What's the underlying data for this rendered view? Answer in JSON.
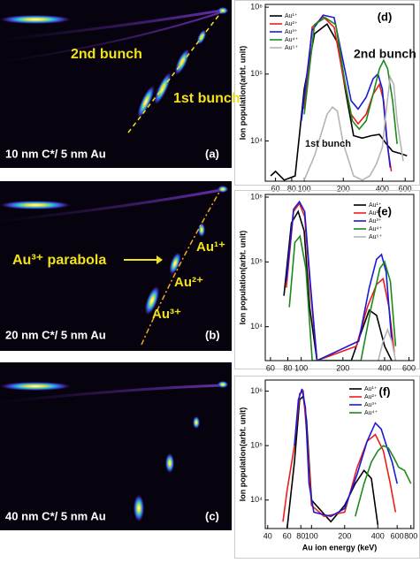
{
  "images": [
    {
      "label": "(a)",
      "caption": "10 nm C*/ 5 nm Au",
      "annotations": [
        "2nd bunch",
        "1st bunch"
      ]
    },
    {
      "label": "(b)",
      "caption": "20 nm C*/ 5 nm Au",
      "annotations": [
        "Au³⁺ parabola",
        "Au¹⁺",
        "Au²⁺",
        "Au³⁺"
      ]
    },
    {
      "label": "(c)",
      "caption": "40 nm C*/ 5 nm Au",
      "annotations": []
    }
  ],
  "chart_data": [
    {
      "type": "line",
      "panel_label": "(d)",
      "y_label": "Ion population(arbt. unit)",
      "xscale": "log",
      "yscale": "log",
      "legend": "upper left",
      "xlim": [
        50,
        700
      ],
      "xticks": [
        60,
        80,
        100,
        200,
        400,
        600
      ],
      "ylim": [
        2500,
        1100000
      ],
      "yticks": [
        {
          "value": 10000,
          "label": "10⁴"
        },
        {
          "value": 100000,
          "label": "10⁵"
        },
        {
          "value": 1000000,
          "label": "10⁶"
        }
      ],
      "annotations": [
        "2nd bunch",
        "1st bunch"
      ],
      "series": [
        {
          "name": "Au¹⁺",
          "color": "#000000",
          "x": [
            55,
            60,
            70,
            85,
            100,
            120,
            150,
            180,
            210,
            240,
            280,
            330,
            380,
            430,
            480,
            550,
            620
          ],
          "values": [
            3000,
            3500,
            2600,
            3000,
            60000,
            400000,
            560000,
            300000,
            50000,
            12000,
            11000,
            12000,
            12500,
            9000,
            7000,
            6500,
            6000
          ]
        },
        {
          "name": "Au²⁺",
          "color": "#ee1c1c",
          "x": [
            100,
            115,
            140,
            170,
            200,
            230,
            260,
            300,
            340,
            380,
            410,
            440,
            470
          ],
          "values": [
            30000,
            500000,
            720000,
            500000,
            90000,
            25000,
            18000,
            25000,
            50000,
            70000,
            40000,
            8000,
            3500
          ]
        },
        {
          "name": "Au³⁺",
          "color": "#1a1ad6",
          "x": [
            95,
            115,
            140,
            170,
            200,
            230,
            260,
            300,
            340,
            370,
            400,
            430,
            460
          ],
          "values": [
            20000,
            450000,
            760000,
            700000,
            150000,
            40000,
            30000,
            45000,
            85000,
            100000,
            60000,
            12000,
            4000
          ]
        },
        {
          "name": "Au⁴⁺",
          "color": "#1b8a1b",
          "x": [
            100,
            120,
            145,
            175,
            205,
            235,
            265,
            300,
            340,
            380,
            410,
            440,
            480,
            520
          ],
          "values": [
            25000,
            550000,
            700000,
            550000,
            80000,
            20000,
            15000,
            20000,
            50000,
            120000,
            160000,
            120000,
            40000,
            9000
          ]
        },
        {
          "name": "Au⁵⁺",
          "color": "#b5b5b5",
          "x": [
            100,
            120,
            150,
            165,
            180,
            200,
            240,
            280,
            320,
            360,
            400,
            430,
            460,
            490,
            520,
            580
          ],
          "values": [
            2600,
            6000,
            25000,
            32000,
            28000,
            9000,
            3000,
            2600,
            3000,
            4500,
            8000,
            30000,
            90000,
            70000,
            20000,
            5000
          ]
        }
      ]
    },
    {
      "type": "line",
      "panel_label": "(e)",
      "y_label": "Ion population(arbt. unit)",
      "xscale": "log",
      "yscale": "log",
      "legend": "upper right",
      "xlim": [
        55,
        650
      ],
      "xticks": [
        60,
        80,
        100,
        200,
        400,
        600
      ],
      "ylim": [
        3000,
        1100000
      ],
      "yticks": [
        {
          "value": 10000,
          "label": "10⁴"
        },
        {
          "value": 100000,
          "label": "10⁵"
        },
        {
          "value": 1000000,
          "label": "10⁶"
        }
      ],
      "series": [
        {
          "name": "Au¹⁺",
          "color": "#000000",
          "x": [
            75,
            85,
            95,
            105,
            115,
            130,
            230,
            270,
            310,
            350,
            400,
            450
          ],
          "values": [
            30000,
            400000,
            600000,
            300000,
            20000,
            3000,
            3000,
            8000,
            18000,
            15000,
            5000,
            3000
          ]
        },
        {
          "name": "Au²⁺",
          "color": "#ee1c1c",
          "x": [
            78,
            88,
            97,
            106,
            116,
            130,
            250,
            300,
            350,
            390,
            430,
            470
          ],
          "values": [
            40000,
            600000,
            800000,
            500000,
            40000,
            3000,
            5000,
            20000,
            45000,
            55000,
            20000,
            4000
          ]
        },
        {
          "name": "Au³⁺",
          "color": "#1a1ad6",
          "x": [
            78,
            88,
            97,
            106,
            116,
            130,
            260,
            310,
            350,
            380,
            410,
            450
          ],
          "values": [
            50000,
            650000,
            850000,
            600000,
            50000,
            3000,
            6000,
            40000,
            110000,
            130000,
            70000,
            6000
          ]
        },
        {
          "name": "Au⁴⁺",
          "color": "#1b8a1b",
          "x": [
            82,
            90,
            98,
            108,
            120,
            270,
            320,
            370,
            400,
            440,
            480
          ],
          "values": [
            20000,
            200000,
            250000,
            80000,
            3000,
            3000,
            20000,
            80000,
            100000,
            50000,
            5000
          ]
        },
        {
          "name": "Au⁵⁺",
          "color": "#b5b5b5",
          "x": [
            360,
            390,
            420,
            450,
            480
          ],
          "values": [
            3000,
            6000,
            9000,
            6000,
            3000
          ]
        }
      ]
    },
    {
      "type": "line",
      "panel_label": "(f)",
      "y_label": "Ion population(arbt. unit)",
      "x_label": "Au ion energy (keV)",
      "xscale": "log",
      "yscale": "log",
      "legend": "upper right",
      "xlim": [
        38,
        850
      ],
      "xticks": [
        40,
        60,
        80,
        100,
        200,
        400,
        600,
        800
      ],
      "ylim": [
        3000,
        1600000
      ],
      "yticks": [
        {
          "value": 10000,
          "label": "10⁴"
        },
        {
          "value": 100000,
          "label": "10⁵"
        },
        {
          "value": 1000000,
          "label": "10⁶"
        }
      ],
      "series": [
        {
          "name": "Au¹⁺",
          "color": "#000000",
          "x": [
            60,
            70,
            78,
            84,
            90,
            100,
            150,
            200,
            250,
            300,
            350,
            400
          ],
          "values": [
            3000,
            50000,
            700000,
            800000,
            300000,
            10000,
            4000,
            8000,
            20000,
            35000,
            25000,
            3500
          ]
        },
        {
          "name": "Au²⁺",
          "color": "#ee1c1c",
          "x": [
            55,
            60,
            70,
            78,
            84,
            90,
            100,
            130,
            200,
            260,
            320,
            380,
            450,
            520,
            580
          ],
          "values": [
            4000,
            15000,
            100000,
            900000,
            1000000,
            200000,
            8000,
            5000,
            6000,
            40000,
            120000,
            160000,
            80000,
            20000,
            6000
          ]
        },
        {
          "name": "Au³⁺",
          "color": "#1a1ad6",
          "x": [
            70,
            76,
            82,
            88,
            95,
            105,
            150,
            200,
            260,
            320,
            380,
            430,
            480,
            540,
            600
          ],
          "values": [
            100000,
            700000,
            1100000,
            500000,
            20000,
            6000,
            5000,
            7000,
            30000,
            120000,
            260000,
            200000,
            100000,
            50000,
            20000
          ]
        },
        {
          "name": "Au⁴⁺",
          "color": "#1b8a1b",
          "x": [
            250,
            300,
            350,
            400,
            450,
            500,
            560,
            620,
            700,
            800
          ],
          "values": [
            5000,
            20000,
            50000,
            80000,
            100000,
            90000,
            60000,
            40000,
            35000,
            20000
          ]
        }
      ]
    }
  ]
}
